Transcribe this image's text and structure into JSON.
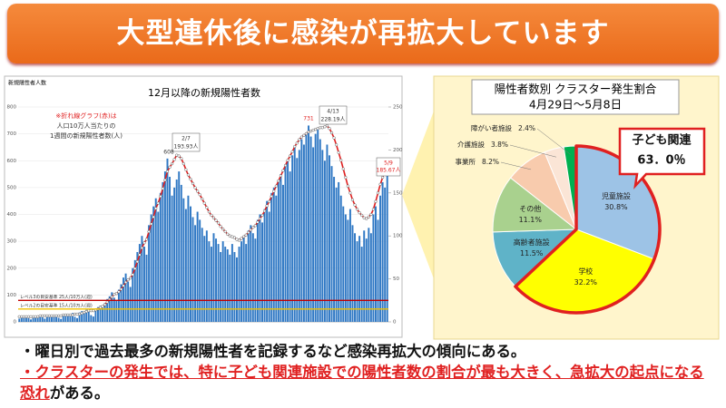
{
  "header": {
    "title": "大型連休後に感染が再拡大しています"
  },
  "chart_data": [
    {
      "type": "bar",
      "title": "12月以降の新規陽性者数",
      "ylabel": "新規陽性者人数",
      "ylim": [
        0,
        800
      ],
      "yticks": [
        0,
        100,
        200,
        300,
        400,
        500,
        600,
        700,
        800
      ],
      "y2lim": [
        0,
        250
      ],
      "y2ticks": [
        0,
        50,
        100,
        150,
        200,
        250
      ],
      "note": [
        "※折れ線グラフ(赤)は",
        "人口10万人当たりの",
        "1週間の新規陽性者数(人)"
      ],
      "callouts": [
        "608",
        "2/7",
        "193.93人",
        "731",
        "4/13",
        "228.19人",
        "5/9",
        "185.67人"
      ],
      "reference_lines": [
        {
          "value": 25,
          "axis": "y2",
          "color": "#c00000",
          "label": "レベル3の目安基準 25人/10万人(週)"
        },
        {
          "value": 15,
          "axis": "y2",
          "color": "#f0c000",
          "label": "レベル2の目安基準 15人/10万人(週)"
        }
      ],
      "series": [
        {
          "type": "bar",
          "color": "#2f78c4",
          "values": [
            12,
            18,
            15,
            20,
            14,
            9,
            16,
            22,
            19,
            25,
            17,
            12,
            20,
            24,
            18,
            23,
            27,
            15,
            11,
            26,
            30,
            24,
            28,
            33,
            19,
            14,
            35,
            40,
            32,
            45,
            38,
            25,
            20,
            48,
            55,
            60,
            52,
            70,
            85,
            95,
            110,
            90,
            80,
            120,
            140,
            165,
            180,
            150,
            130,
            200,
            230,
            260,
            290,
            320,
            280,
            250,
            360,
            400,
            430,
            460,
            410,
            480,
            520,
            560,
            608,
            540,
            470,
            500,
            530,
            560,
            510,
            460,
            420,
            470,
            430,
            390,
            360,
            410,
            380,
            350,
            320,
            340,
            300,
            280,
            330,
            310,
            290,
            260,
            300,
            280,
            270,
            250,
            290,
            260,
            240,
            280,
            300,
            320,
            290,
            340,
            360,
            330,
            310,
            380,
            400,
            370,
            420,
            450,
            410,
            480,
            500,
            470,
            520,
            550,
            510,
            580,
            600,
            560,
            620,
            650,
            610,
            640,
            680,
            660,
            700,
            731,
            690,
            650,
            700,
            720,
            680,
            640,
            600,
            660,
            620,
            580,
            540,
            500,
            520,
            470,
            430,
            400,
            380,
            420,
            360,
            330,
            300,
            320,
            280,
            340,
            310,
            350,
            330,
            400,
            430,
            380,
            470,
            520,
            500,
            590
          ]
        },
        {
          "type": "line",
          "axis": "y2",
          "color": "#e02020",
          "values": [
            6,
            6,
            6,
            6,
            6,
            6,
            6,
            6,
            6,
            7,
            7,
            7,
            7,
            7,
            7,
            7,
            7,
            7,
            7,
            8,
            8,
            8,
            8,
            8,
            9,
            9,
            9,
            10,
            11,
            12,
            13,
            13,
            13,
            14,
            15,
            17,
            18,
            20,
            23,
            26,
            29,
            32,
            33,
            35,
            38,
            42,
            46,
            49,
            51,
            55,
            62,
            70,
            78,
            86,
            92,
            96,
            105,
            114,
            122,
            132,
            138,
            146,
            155,
            165,
            175,
            180,
            184,
            189,
            193.93,
            193,
            190,
            184,
            177,
            171,
            166,
            161,
            156,
            152,
            148,
            143,
            138,
            133,
            128,
            124,
            121,
            118,
            115,
            111,
            108,
            105,
            102,
            100,
            99,
            98,
            96,
            95,
            97,
            99,
            101,
            104,
            107,
            110,
            112,
            116,
            120,
            124,
            129,
            135,
            140,
            146,
            152,
            158,
            164,
            170,
            176,
            182,
            188,
            193,
            198,
            204,
            208,
            212,
            215,
            217,
            219,
            221,
            222,
            223,
            224,
            225,
            226,
            226,
            227,
            228.19,
            225,
            220,
            214,
            206,
            197,
            188,
            178,
            168,
            158,
            150,
            142,
            136,
            131,
            127,
            124,
            121,
            120,
            122,
            125,
            131,
            140,
            150,
            160,
            168,
            176,
            185.67
          ]
        }
      ]
    },
    {
      "type": "pie",
      "title": "陽性者数別 クラスター発生割合",
      "subtitle": "4月29日～5月8日",
      "callout": [
        "子ども関連",
        "63．0％"
      ],
      "categories": [
        "児童施設",
        "学校",
        "高齢者施設",
        "その他",
        "事業所",
        "介護施設",
        "障がい者施設"
      ],
      "values": [
        30.8,
        32.2,
        11.5,
        11.1,
        8.2,
        3.8,
        2.4
      ],
      "value_labels": [
        "30.8%",
        "32.2%",
        "11.5%",
        "11.1%",
        "8.2%",
        "3.8%",
        "2.4%"
      ],
      "colors": [
        "#9dc3e6",
        "#ffff00",
        "#5fb3c8",
        "#a9d18e",
        "#f8cbad",
        "#fbe5d6",
        "#00b050"
      ]
    }
  ],
  "bullets": [
    [
      {
        "text": "・曜日別で過去最多の新規陽性者を記録するなど感染再拡大の傾向にある。",
        "color": "#111111"
      }
    ],
    [
      {
        "text": "・クラスターの発生では、特に子ども関連施設での陽性者数の割合が最も大きく、急拡大の起点になる恐れ",
        "color": "#e02020",
        "underline": true
      },
      {
        "text": "がある。",
        "color": "#111111"
      }
    ]
  ]
}
